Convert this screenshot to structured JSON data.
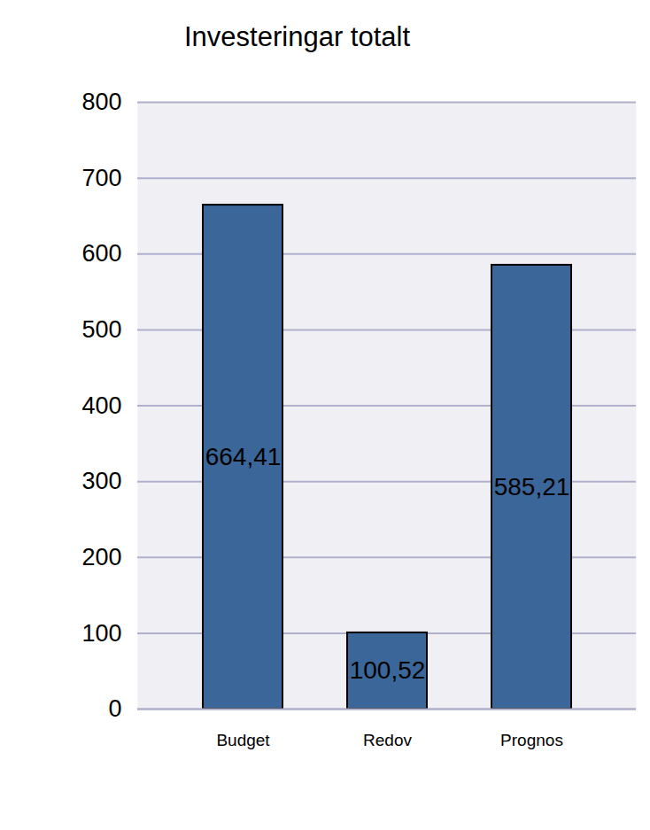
{
  "chart_data": {
    "type": "bar",
    "title": "Investeringar totalt",
    "categories": [
      "Budget",
      "Redov",
      "Prognos"
    ],
    "values": [
      664.41,
      100.52,
      585.21
    ],
    "value_labels": [
      "664,41",
      "100,52",
      "585,21"
    ],
    "color": "#3b6699",
    "ylim": [
      0,
      800
    ],
    "yticks": [
      0,
      100,
      200,
      300,
      400,
      500,
      600,
      700,
      800
    ],
    "grid": true,
    "data_labels": true
  }
}
